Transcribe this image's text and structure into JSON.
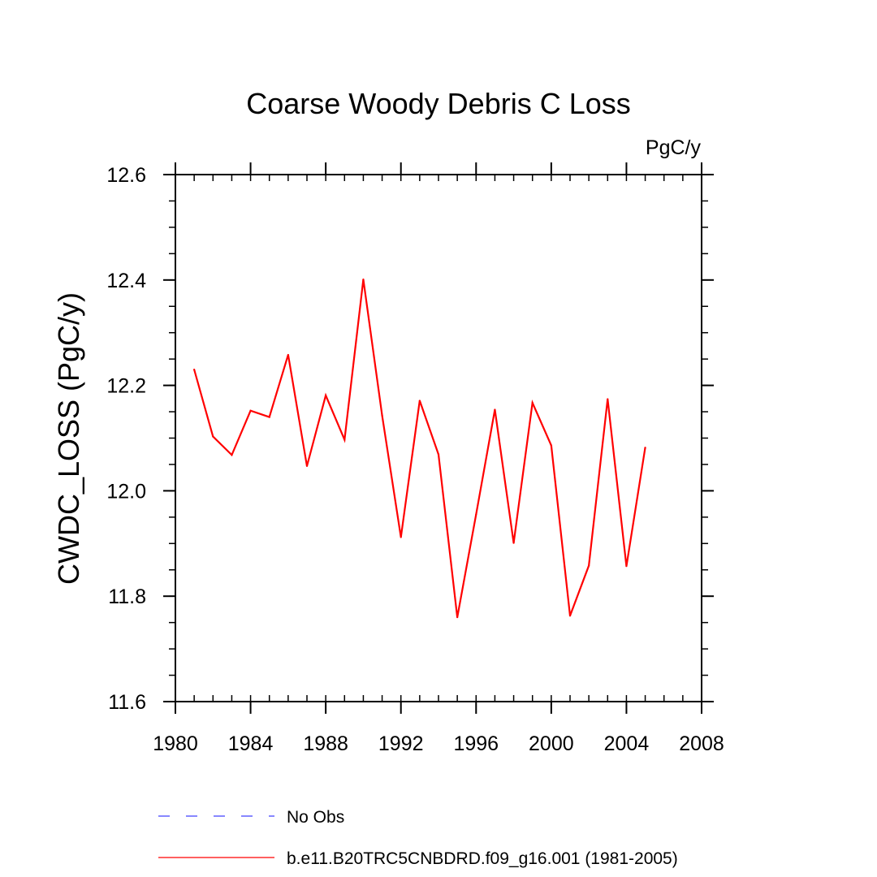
{
  "chart_data": {
    "type": "line",
    "title": "Coarse Woody Debris C Loss",
    "units_label": "PgC/y",
    "xlabel": "",
    "ylabel": "CWDC_LOSS  (PgC/y)",
    "xlim": [
      1980,
      2008
    ],
    "ylim": [
      11.6,
      12.6
    ],
    "x_major_ticks": [
      1980,
      1984,
      1988,
      1992,
      1996,
      2000,
      2004,
      2008
    ],
    "x_tick_labels": [
      "1980",
      "1984",
      "1988",
      "1992",
      "1996",
      "2000",
      "2004",
      "2008"
    ],
    "x_minor_step": 1,
    "y_major_ticks": [
      11.6,
      11.8,
      12.0,
      12.2,
      12.4,
      12.6
    ],
    "y_tick_labels": [
      "11.6",
      "11.8",
      "12.0",
      "12.2",
      "12.4",
      "12.6"
    ],
    "y_minor_step": 0.05,
    "grid": false,
    "legend_position": "bottom-left",
    "series": [
      {
        "name": "No Obs",
        "style": "dashed",
        "color": "#4040ff",
        "x": [],
        "values": []
      },
      {
        "name": "b.e11.B20TRC5CNBDRD.f09_g16.001 (1981-2005)",
        "style": "solid",
        "color": "#ff0000",
        "x": [
          1981,
          1982,
          1983,
          1984,
          1985,
          1986,
          1987,
          1988,
          1989,
          1990,
          1991,
          1992,
          1993,
          1994,
          1995,
          1996,
          1997,
          1998,
          1999,
          2000,
          2001,
          2002,
          2003,
          2004,
          2005
        ],
        "values": [
          12.23,
          12.103,
          12.068,
          12.152,
          12.14,
          12.258,
          12.047,
          12.181,
          12.097,
          12.401,
          12.143,
          11.912,
          12.171,
          12.069,
          11.76,
          11.955,
          12.154,
          11.901,
          12.167,
          12.086,
          11.763,
          11.858,
          12.174,
          11.857,
          12.082
        ]
      }
    ]
  }
}
